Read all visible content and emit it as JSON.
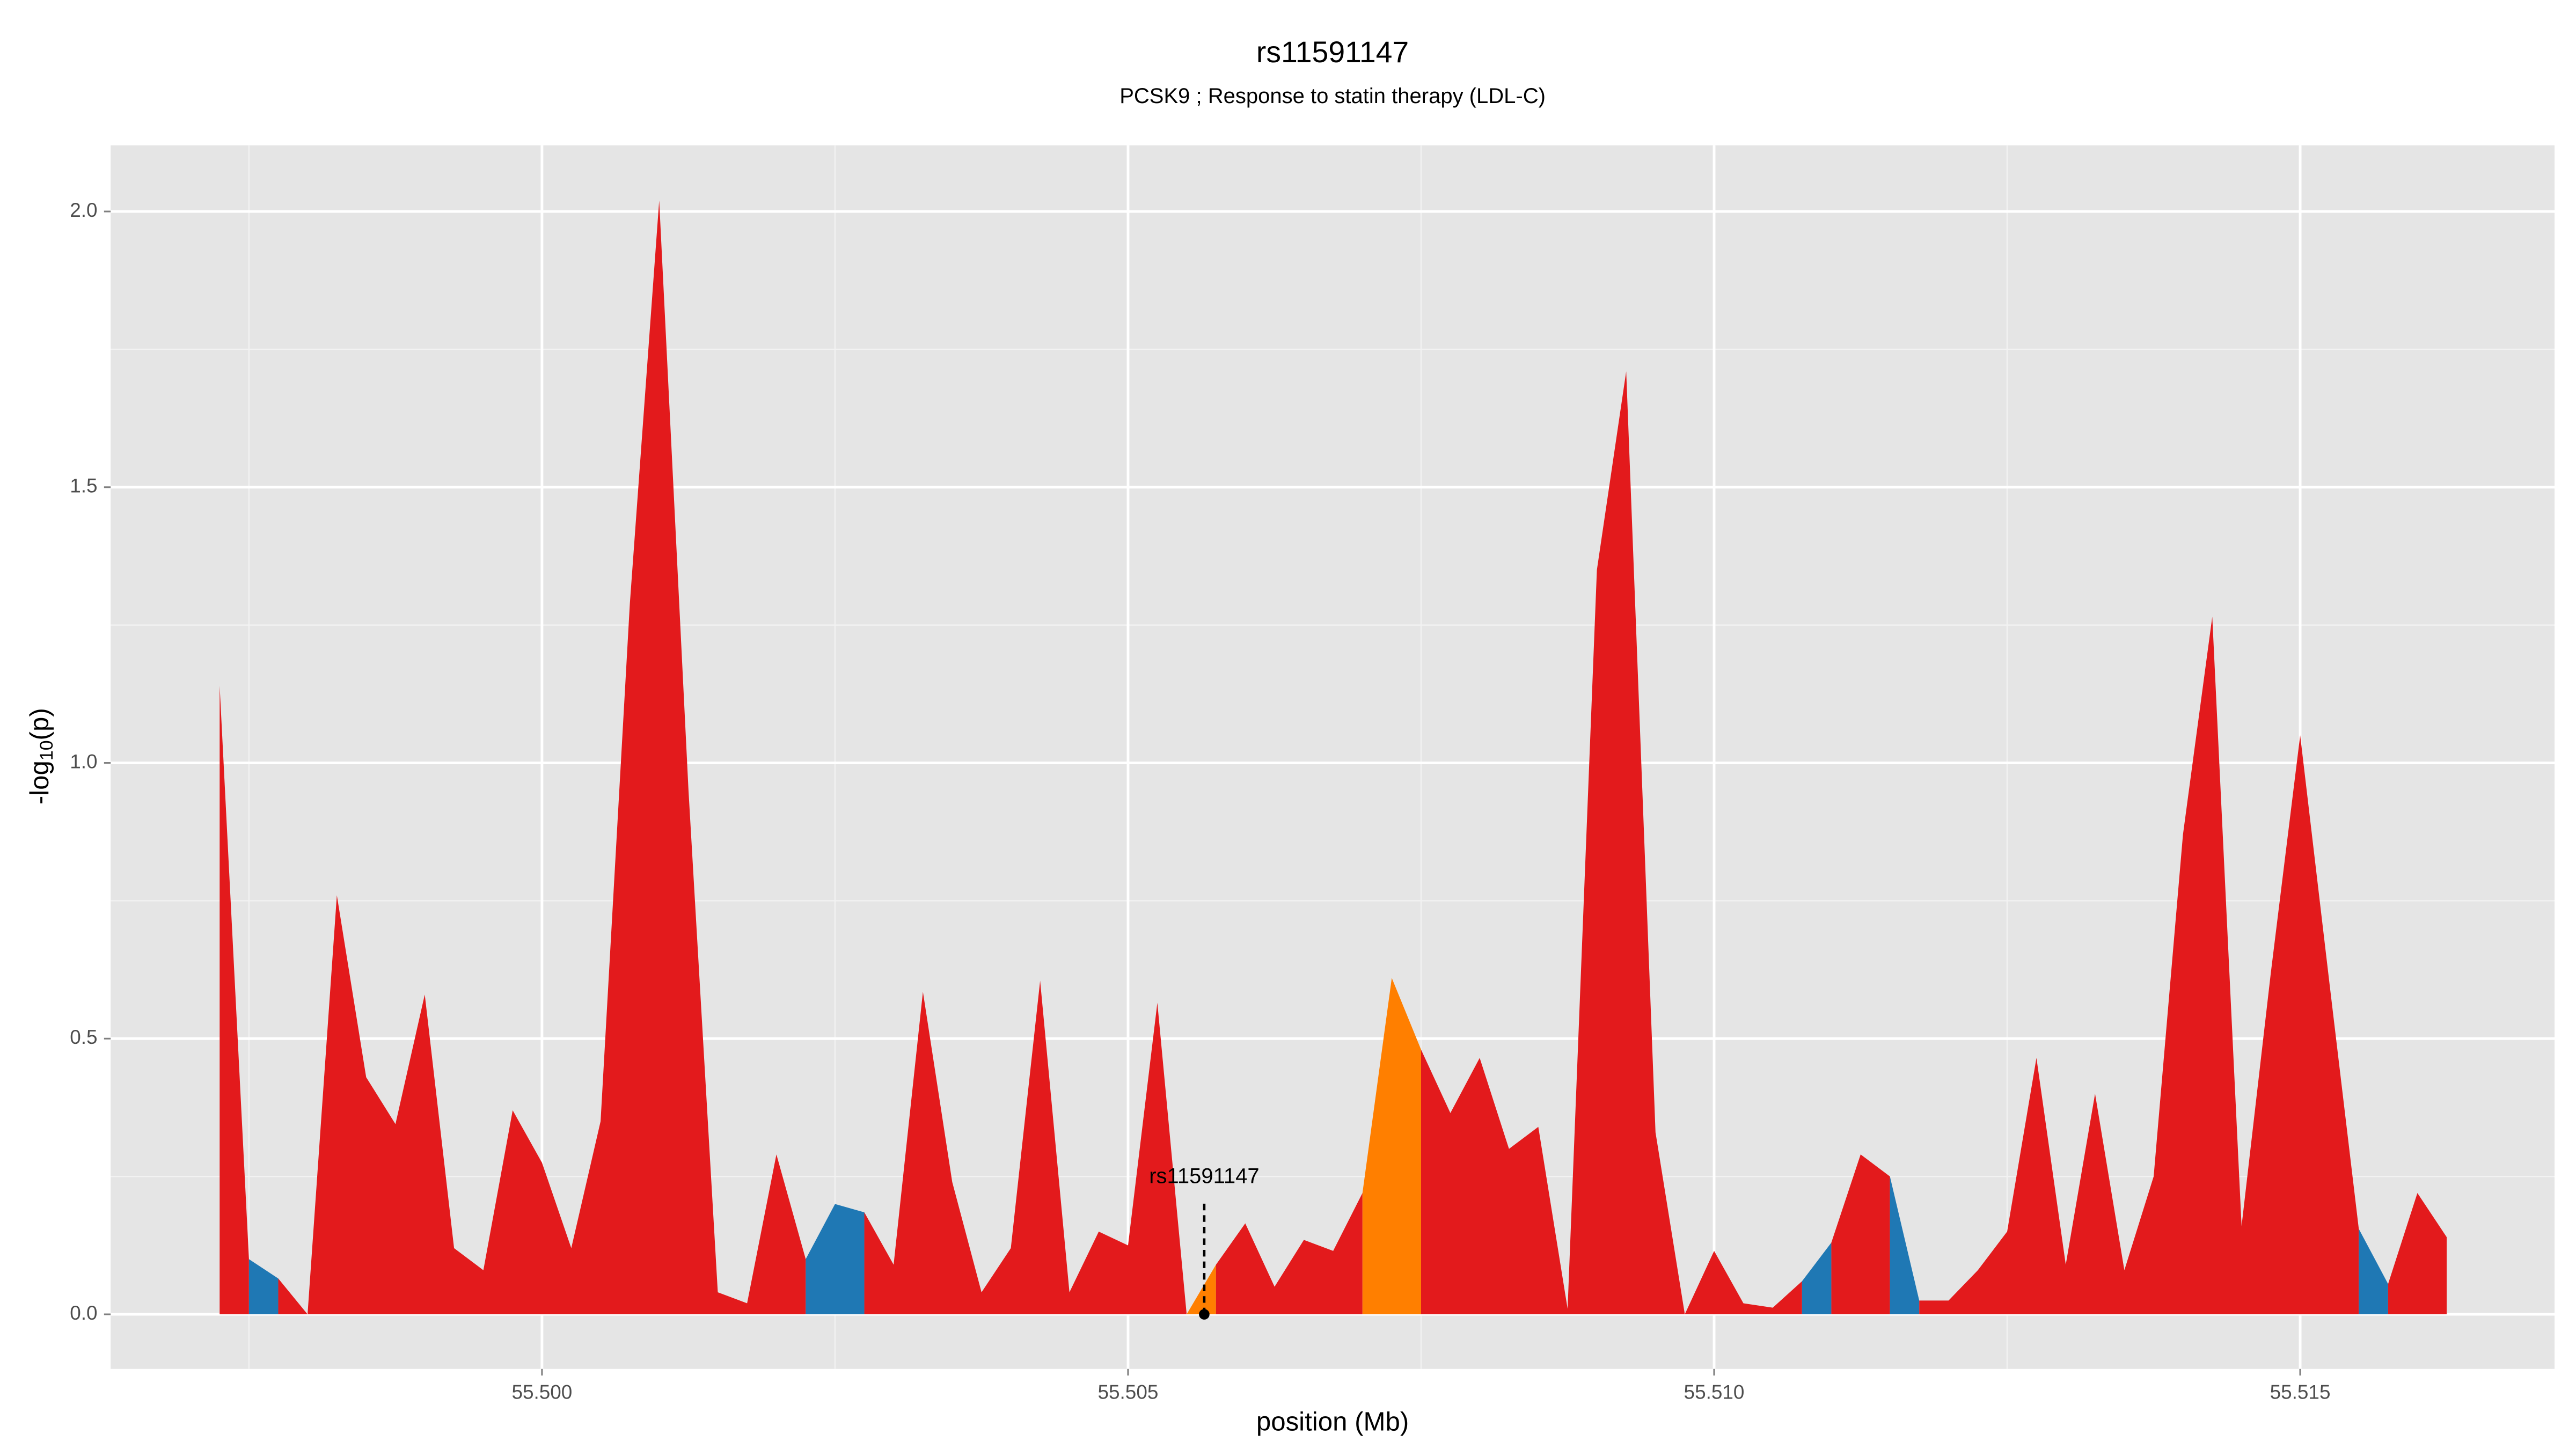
{
  "chart_data": {
    "type": "area",
    "title": "rs11591147",
    "subtitle": "PCSK9 ; Response to statin therapy (LDL-C)",
    "xlabel": "position (Mb)",
    "ylabel_parts": [
      "-log",
      "10",
      "(p)"
    ],
    "xlim": [
      55.49632,
      55.51717
    ],
    "ylim": [
      -0.099,
      2.12
    ],
    "xticks": [
      {
        "value": 55.5,
        "label": "55.500"
      },
      {
        "value": 55.505,
        "label": "55.505"
      },
      {
        "value": 55.51,
        "label": "55.510"
      },
      {
        "value": 55.515,
        "label": "55.515"
      }
    ],
    "yticks": [
      {
        "value": 0,
        "label": "0.0"
      },
      {
        "value": 0.5,
        "label": "0.5"
      },
      {
        "value": 1,
        "label": "1.0"
      },
      {
        "value": 1.5,
        "label": "1.5"
      },
      {
        "value": 2,
        "label": "2.0"
      }
    ],
    "x_minor_grid": [
      55.4975,
      55.5025,
      55.5075,
      55.5125
    ],
    "y_minor_grid": [
      0.25,
      0.75,
      1.25,
      1.75
    ],
    "grid": true,
    "highlight": {
      "label": "rs11591147",
      "x": 55.50565
    },
    "series": [
      {
        "color": "#e31a1c",
        "x": [
          55.49725,
          55.4975
        ],
        "values": [
          1.14,
          0.1
        ]
      },
      {
        "color": "#1f78b4",
        "x": [
          55.4975,
          55.49775
        ],
        "values": [
          0.1,
          0.065
        ]
      },
      {
        "color": "#e31a1c",
        "x": [
          55.49775,
          55.498,
          55.49825,
          55.4985,
          55.49875,
          55.499,
          55.49925,
          55.4995,
          55.49975,
          55.5,
          55.50025,
          55.5005,
          55.50075,
          55.501,
          55.50125,
          55.5015,
          55.50175,
          55.502,
          55.50225
        ],
        "values": [
          0.065,
          0,
          0.76,
          0.43,
          0.345,
          0.58,
          0.12,
          0.08,
          0.37,
          0.275,
          0.12,
          0.35,
          1.29,
          2.02,
          0.95,
          0.04,
          0.02,
          0.29,
          0.1
        ]
      },
      {
        "color": "#1f78b4",
        "x": [
          55.50225,
          55.5025,
          55.50275
        ],
        "values": [
          0.1,
          0.2,
          0.185
        ]
      },
      {
        "color": "#e31a1c",
        "x": [
          55.50275,
          55.503,
          55.50325,
          55.5035,
          55.50375,
          55.504,
          55.50425,
          55.5045,
          55.50475,
          55.505,
          55.50525,
          55.5055
        ],
        "values": [
          0.185,
          0.09,
          0.585,
          0.24,
          0.04,
          0.12,
          0.605,
          0.04,
          0.15,
          0.125,
          0.565,
          0
        ]
      },
      {
        "color": "#ff7f00",
        "x": [
          55.5055,
          55.50575
        ],
        "values": [
          0,
          0.09
        ]
      },
      {
        "color": "#e31a1c",
        "x": [
          55.50575,
          55.506,
          55.50625,
          55.5065,
          55.50675,
          55.507
        ],
        "values": [
          0.09,
          0.165,
          0.05,
          0.135,
          0.115,
          0.22
        ]
      },
      {
        "color": "#ff7f00",
        "x": [
          55.507,
          55.50725,
          55.5075
        ],
        "values": [
          0.22,
          0.61,
          0.48
        ]
      },
      {
        "color": "#e31a1c",
        "x": [
          55.5075,
          55.50775,
          55.508,
          55.50825,
          55.5085,
          55.50875,
          55.509,
          55.50925,
          55.5095,
          55.50975,
          55.51,
          55.51025,
          55.5105,
          55.51075
        ],
        "values": [
          0.48,
          0.365,
          0.465,
          0.3,
          0.34,
          0.01,
          1.35,
          1.71,
          0.33,
          0,
          0.115,
          0.02,
          0.012,
          0.06
        ]
      },
      {
        "color": "#1f78b4",
        "x": [
          55.51075,
          55.511
        ],
        "values": [
          0.06,
          0.13
        ]
      },
      {
        "color": "#e31a1c",
        "x": [
          55.511,
          55.51125,
          55.5115
        ],
        "values": [
          0.13,
          0.29,
          0.25
        ]
      },
      {
        "color": "#1f78b4",
        "x": [
          55.5115,
          55.51175
        ],
        "values": [
          0.25,
          0.025
        ]
      },
      {
        "color": "#e31a1c",
        "x": [
          55.51175,
          55.512,
          55.51225,
          55.5125,
          55.51275,
          55.513,
          55.51325,
          55.5135,
          55.51375,
          55.514,
          55.51425,
          55.5145,
          55.51475,
          55.515,
          55.51525,
          55.5155
        ],
        "values": [
          0.025,
          0.025,
          0.08,
          0.15,
          0.465,
          0.09,
          0.4,
          0.08,
          0.25,
          0.87,
          1.265,
          0.16,
          0.62,
          1.05,
          0.6,
          0.155
        ]
      },
      {
        "color": "#1f78b4",
        "x": [
          55.5155,
          55.51575
        ],
        "values": [
          0.155,
          0.055
        ]
      },
      {
        "color": "#e31a1c",
        "x": [
          55.51575,
          55.516,
          55.51625
        ],
        "values": [
          0.055,
          0.22,
          0.14
        ]
      }
    ]
  }
}
